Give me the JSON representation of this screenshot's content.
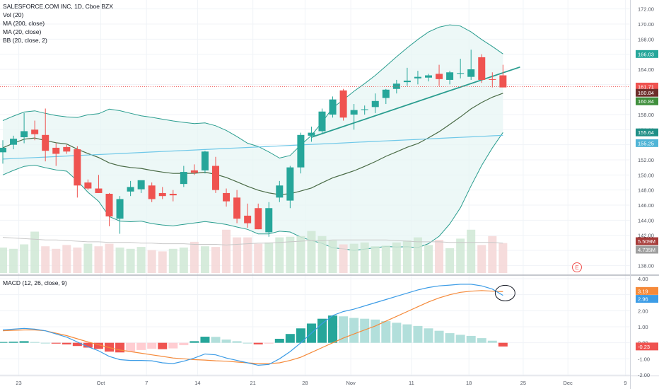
{
  "legend": {
    "title": "SALESFORCE.COM INC, 1D, Cboe BZX",
    "vol": "Vol (20)",
    "ma200": "MA (200, close)",
    "ma20": "MA (20, close)",
    "bb": "BB (20, close, 2)",
    "macd": "MACD (12, 26, close, 9)"
  },
  "colors": {
    "up": "#26a69a",
    "down": "#ef5350",
    "ma20": "#4a6b46",
    "ma200": "#6fc8e8",
    "bb_band": "#2a9d8f",
    "bb_fill": "#e6f5f4",
    "macd_line": "#3c9ce6",
    "signal_line": "#f58a3a",
    "hist_up_strong": "#26a69a",
    "hist_up_weak": "#b2dfdb",
    "hist_down_strong": "#ef5350",
    "hist_down_weak": "#ffcdd2",
    "price_line": "#ef5350"
  },
  "chart_data": [
    {
      "type": "candlestick",
      "title": "SALESFORCE.COM INC, 1D, Cboe BZX",
      "ylim": [
        137,
        173
      ],
      "y_ticks": [
        "138.00",
        "140.00",
        "142.00",
        "144.00",
        "146.00",
        "148.00",
        "150.00",
        "152.00",
        "154.00",
        "156.00",
        "158.00",
        "160.00",
        "162.00",
        "164.00",
        "166.00",
        "168.00",
        "170.00",
        "172.00"
      ],
      "x_ticks": [
        "23",
        "Oct",
        "7",
        "14",
        "21",
        "28",
        "Nov",
        "11",
        "18",
        "25",
        "Dec",
        "9"
      ],
      "price_tags": [
        {
          "label": "166.03",
          "value": 166.03,
          "color": "#26a69a"
        },
        {
          "label": "161.71",
          "value": 161.71,
          "color": "#ef5350"
        },
        {
          "label": "160.84",
          "value": 160.84,
          "color": "#6d2d2a"
        },
        {
          "label": "160.84",
          "value": 160.84,
          "color": "#3f8f3c"
        },
        {
          "label": "155.64",
          "value": 155.64,
          "color": "#1f8f86"
        },
        {
          "label": "155.25",
          "value": 155.25,
          "color": "#4fb4d6"
        }
      ],
      "volume_tags": [
        {
          "label": "5.509M",
          "color": "#a63a38"
        },
        {
          "label": "4.735M",
          "color": "#9e9e9e"
        }
      ],
      "earnings_marker": "E",
      "candles": [
        {
          "o": 153.0,
          "h": 154.6,
          "l": 151.5,
          "c": 153.6
        },
        {
          "o": 154.0,
          "h": 155.2,
          "l": 153.4,
          "c": 154.8
        },
        {
          "o": 155.0,
          "h": 158.2,
          "l": 154.2,
          "c": 155.8
        },
        {
          "o": 156.0,
          "h": 157.2,
          "l": 154.6,
          "c": 155.4
        },
        {
          "o": 155.3,
          "h": 158.8,
          "l": 151.8,
          "c": 153.2
        },
        {
          "o": 153.6,
          "h": 154.2,
          "l": 151.2,
          "c": 152.8
        },
        {
          "o": 153.7,
          "h": 154.0,
          "l": 152.8,
          "c": 153.1
        },
        {
          "o": 153.4,
          "h": 153.8,
          "l": 147.0,
          "c": 148.6
        },
        {
          "o": 149.0,
          "h": 149.4,
          "l": 148.0,
          "c": 148.2
        },
        {
          "o": 148.2,
          "h": 150.0,
          "l": 147.6,
          "c": 147.6
        },
        {
          "o": 147.5,
          "h": 147.6,
          "l": 143.2,
          "c": 144.5
        },
        {
          "o": 144.2,
          "h": 147.2,
          "l": 142.2,
          "c": 146.8
        },
        {
          "o": 147.8,
          "h": 149.2,
          "l": 147.2,
          "c": 148.4
        },
        {
          "o": 148.1,
          "h": 149.2,
          "l": 147.6,
          "c": 149.3
        },
        {
          "o": 148.6,
          "h": 149.0,
          "l": 146.4,
          "c": 146.8
        },
        {
          "o": 147.6,
          "h": 148.4,
          "l": 146.8,
          "c": 147.2
        },
        {
          "o": 147.5,
          "h": 148.0,
          "l": 146.5,
          "c": 147.3
        },
        {
          "o": 148.8,
          "h": 151.2,
          "l": 148.4,
          "c": 150.4
        },
        {
          "o": 150.6,
          "h": 151.4,
          "l": 150.0,
          "c": 150.3
        },
        {
          "o": 150.6,
          "h": 153.2,
          "l": 150.2,
          "c": 153.1
        },
        {
          "o": 151.2,
          "h": 152.4,
          "l": 147.6,
          "c": 148.0
        },
        {
          "o": 147.6,
          "h": 148.2,
          "l": 145.8,
          "c": 146.5
        },
        {
          "o": 147.0,
          "h": 148.0,
          "l": 143.6,
          "c": 144.2
        },
        {
          "o": 144.6,
          "h": 146.2,
          "l": 143.0,
          "c": 143.6
        },
        {
          "o": 145.6,
          "h": 146.2,
          "l": 142.8,
          "c": 142.8
        },
        {
          "o": 142.4,
          "h": 146.4,
          "l": 141.8,
          "c": 145.6
        },
        {
          "o": 147.0,
          "h": 149.2,
          "l": 146.4,
          "c": 148.6
        },
        {
          "o": 146.6,
          "h": 151.2,
          "l": 145.6,
          "c": 151.0
        },
        {
          "o": 151.0,
          "h": 155.6,
          "l": 150.2,
          "c": 155.3
        },
        {
          "o": 155.2,
          "h": 156.4,
          "l": 154.4,
          "c": 155.6
        },
        {
          "o": 155.8,
          "h": 158.8,
          "l": 155.4,
          "c": 158.4
        },
        {
          "o": 158.0,
          "h": 160.4,
          "l": 157.6,
          "c": 160.0
        },
        {
          "o": 161.2,
          "h": 161.4,
          "l": 157.2,
          "c": 157.6
        },
        {
          "o": 158.0,
          "h": 159.4,
          "l": 156.0,
          "c": 158.6
        },
        {
          "o": 158.6,
          "h": 159.2,
          "l": 158.0,
          "c": 158.7
        },
        {
          "o": 159.0,
          "h": 160.8,
          "l": 158.2,
          "c": 159.8
        },
        {
          "o": 160.2,
          "h": 161.4,
          "l": 159.4,
          "c": 161.3
        },
        {
          "o": 161.4,
          "h": 162.6,
          "l": 160.8,
          "c": 162.1
        },
        {
          "o": 162.3,
          "h": 164.2,
          "l": 161.8,
          "c": 162.5
        },
        {
          "o": 162.8,
          "h": 163.8,
          "l": 162.0,
          "c": 163.0
        },
        {
          "o": 162.9,
          "h": 163.4,
          "l": 162.4,
          "c": 163.2
        },
        {
          "o": 163.4,
          "h": 164.6,
          "l": 161.8,
          "c": 162.7
        },
        {
          "o": 162.6,
          "h": 163.8,
          "l": 162.0,
          "c": 163.6
        },
        {
          "o": 163.4,
          "h": 165.4,
          "l": 162.8,
          "c": 163.5
        },
        {
          "o": 163.0,
          "h": 166.6,
          "l": 162.6,
          "c": 164.0
        },
        {
          "o": 165.6,
          "h": 166.0,
          "l": 162.2,
          "c": 162.6
        },
        {
          "o": 162.7,
          "h": 163.6,
          "l": 161.6,
          "c": 162.6
        },
        {
          "o": 163.2,
          "h": 164.6,
          "l": 161.6,
          "c": 161.6
        }
      ],
      "volume_up": [
        1,
        1,
        1,
        1,
        0,
        0,
        0,
        0,
        1,
        0,
        0,
        1,
        1,
        1,
        0,
        0,
        1,
        1,
        0,
        1,
        0,
        0,
        0,
        0,
        0,
        1,
        1,
        1,
        1,
        1,
        1,
        1,
        0,
        1,
        1,
        1,
        1,
        1,
        1,
        1,
        1,
        0,
        1,
        1,
        1,
        0,
        0,
        0
      ],
      "volume_m": [
        4.0,
        3.8,
        4.5,
        6.5,
        4.2,
        3.8,
        4.4,
        4.0,
        4.6,
        4.2,
        4.6,
        4.0,
        3.8,
        4.1,
        3.6,
        3.4,
        3.8,
        4.0,
        4.9,
        4.2,
        4.1,
        6.8,
        5.6,
        5.6,
        4.6,
        4.8,
        5.6,
        5.7,
        5.8,
        6.6,
        5.8,
        5.1,
        4.5,
        4.6,
        4.8,
        4.2,
        4.3,
        4.8,
        5.1,
        5.6,
        4.4,
        5.2,
        3.9,
        5.4,
        6.8,
        4.4,
        5.8,
        4.7
      ],
      "vol_ma_m": [
        5.6,
        5.5,
        5.4,
        5.3,
        5.2,
        5.2,
        5.1,
        5.0,
        4.9,
        4.9,
        4.8,
        4.8,
        4.8,
        4.7,
        4.7,
        4.6,
        4.6,
        4.6,
        4.5,
        4.5,
        4.5,
        4.4,
        4.5,
        4.6,
        4.7,
        4.7,
        4.8,
        4.9,
        5.0,
        5.1,
        5.1,
        5.2,
        5.2,
        5.2,
        5.2,
        5.2,
        5.2,
        5.1,
        5.0,
        4.9,
        4.9,
        4.9,
        4.8,
        4.8,
        4.8,
        4.8,
        4.8,
        4.7
      ]
    },
    {
      "type": "macd",
      "title": "MACD (12, 26, close, 9)",
      "ylim": [
        -2.0,
        4.0
      ],
      "y_ticks": [
        "4.00",
        "3.00",
        "2.00",
        "1.00",
        "0.00",
        "-1.00",
        "-2.00"
      ],
      "tags": [
        {
          "label": "3.19",
          "value": 3.19,
          "color": "#f58a3a"
        },
        {
          "label": "2.96",
          "value": 2.96,
          "color": "#3c9ce6"
        },
        {
          "label": "-0.23",
          "value": -0.23,
          "color": "#ef5350"
        }
      ],
      "macd": [
        0.8,
        0.85,
        0.9,
        0.85,
        0.75,
        0.55,
        0.35,
        0.05,
        -0.25,
        -0.5,
        -0.85,
        -1.05,
        -1.1,
        -1.1,
        -1.12,
        -1.25,
        -1.3,
        -1.15,
        -0.95,
        -0.7,
        -0.75,
        -0.95,
        -1.1,
        -1.25,
        -1.4,
        -1.35,
        -1.0,
        -0.55,
        0.0,
        0.6,
        1.2,
        1.7,
        1.95,
        2.1,
        2.3,
        2.5,
        2.7,
        2.9,
        3.1,
        3.3,
        3.45,
        3.55,
        3.6,
        3.65,
        3.65,
        3.55,
        3.35,
        2.96
      ],
      "signal": [
        0.75,
        0.78,
        0.8,
        0.8,
        0.75,
        0.6,
        0.45,
        0.25,
        0.05,
        -0.12,
        -0.3,
        -0.45,
        -0.55,
        -0.65,
        -0.75,
        -0.85,
        -0.95,
        -1.0,
        -1.05,
        -1.08,
        -1.12,
        -1.15,
        -1.2,
        -1.25,
        -1.3,
        -1.3,
        -1.25,
        -1.1,
        -0.9,
        -0.6,
        -0.3,
        0.0,
        0.3,
        0.55,
        0.8,
        1.05,
        1.35,
        1.65,
        1.95,
        2.25,
        2.55,
        2.8,
        3.0,
        3.15,
        3.22,
        3.26,
        3.22,
        3.19
      ],
      "hist": [
        0.05,
        0.07,
        0.1,
        0.05,
        0.0,
        -0.05,
        -0.1,
        -0.2,
        -0.3,
        -0.38,
        -0.55,
        -0.6,
        -0.55,
        -0.45,
        -0.37,
        -0.4,
        -0.35,
        -0.15,
        0.1,
        0.38,
        0.37,
        0.2,
        0.1,
        0.0,
        -0.1,
        -0.05,
        0.25,
        0.55,
        0.9,
        1.2,
        1.5,
        1.7,
        1.65,
        1.55,
        1.5,
        1.45,
        1.35,
        1.25,
        1.15,
        1.05,
        0.9,
        0.75,
        0.6,
        0.5,
        0.43,
        0.29,
        0.13,
        -0.23
      ]
    }
  ]
}
